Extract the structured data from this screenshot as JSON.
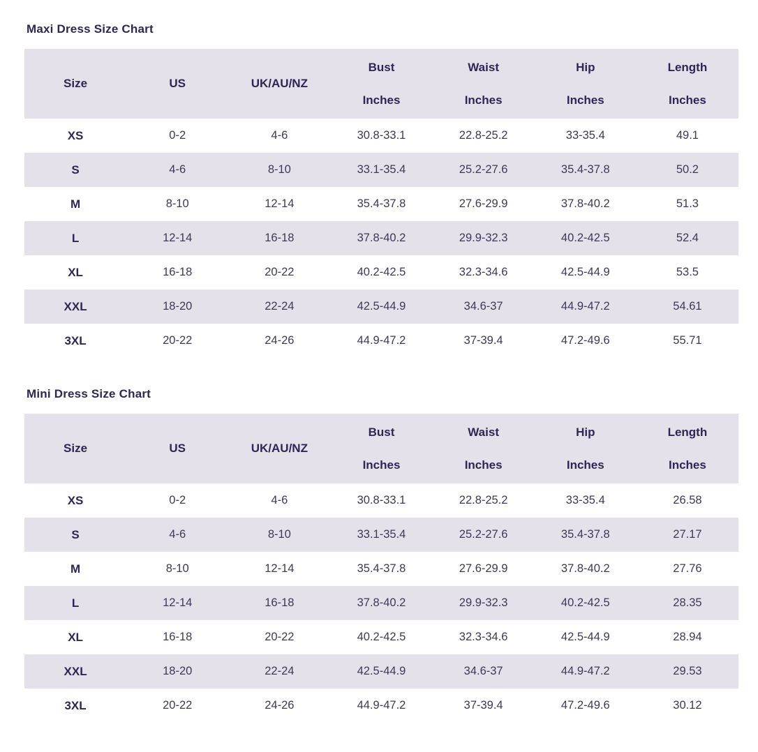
{
  "colors": {
    "stripe_bg": "#e4e1eb",
    "header_bg": "#e4e1eb",
    "title_text": "#2e2653",
    "data_text": "#3c3a54",
    "page_bg": "#ffffff"
  },
  "header": {
    "columns": [
      {
        "label": "Size",
        "sub": ""
      },
      {
        "label": "US",
        "sub": ""
      },
      {
        "label": "UK/AU/NZ",
        "sub": ""
      },
      {
        "label": "Bust",
        "sub": "Inches"
      },
      {
        "label": "Waist",
        "sub": "Inches"
      },
      {
        "label": "Hip",
        "sub": "Inches"
      },
      {
        "label": "Length",
        "sub": "Inches"
      }
    ]
  },
  "chart_data": [
    {
      "type": "table",
      "title": "Maxi Dress Size Chart",
      "columns": [
        "Size",
        "US",
        "UK/AU/NZ",
        "Bust Inches",
        "Waist Inches",
        "Hip Inches",
        "Length Inches"
      ],
      "rows": [
        [
          "XS",
          "0-2",
          "4-6",
          "30.8-33.1",
          "22.8-25.2",
          "33-35.4",
          "49.1"
        ],
        [
          "S",
          "4-6",
          "8-10",
          "33.1-35.4",
          "25.2-27.6",
          "35.4-37.8",
          "50.2"
        ],
        [
          "M",
          "8-10",
          "12-14",
          "35.4-37.8",
          "27.6-29.9",
          "37.8-40.2",
          "51.3"
        ],
        [
          "L",
          "12-14",
          "16-18",
          "37.8-40.2",
          "29.9-32.3",
          "40.2-42.5",
          "52.4"
        ],
        [
          "XL",
          "16-18",
          "20-22",
          "40.2-42.5",
          "32.3-34.6",
          "42.5-44.9",
          "53.5"
        ],
        [
          "XXL",
          "18-20",
          "22-24",
          "42.5-44.9",
          "34.6-37",
          "44.9-47.2",
          "54.61"
        ],
        [
          "3XL",
          "20-22",
          "24-26",
          "44.9-47.2",
          "37-39.4",
          "47.2-49.6",
          "55.71"
        ]
      ]
    },
    {
      "type": "table",
      "title": "Mini Dress Size Chart",
      "columns": [
        "Size",
        "US",
        "UK/AU/NZ",
        "Bust Inches",
        "Waist Inches",
        "Hip Inches",
        "Length Inches"
      ],
      "rows": [
        [
          "XS",
          "0-2",
          "4-6",
          "30.8-33.1",
          "22.8-25.2",
          "33-35.4",
          "26.58"
        ],
        [
          "S",
          "4-6",
          "8-10",
          "33.1-35.4",
          "25.2-27.6",
          "35.4-37.8",
          "27.17"
        ],
        [
          "M",
          "8-10",
          "12-14",
          "35.4-37.8",
          "27.6-29.9",
          "37.8-40.2",
          "27.76"
        ],
        [
          "L",
          "12-14",
          "16-18",
          "37.8-40.2",
          "29.9-32.3",
          "40.2-42.5",
          "28.35"
        ],
        [
          "XL",
          "16-18",
          "20-22",
          "40.2-42.5",
          "32.3-34.6",
          "42.5-44.9",
          "28.94"
        ],
        [
          "XXL",
          "18-20",
          "22-24",
          "42.5-44.9",
          "34.6-37",
          "44.9-47.2",
          "29.53"
        ],
        [
          "3XL",
          "20-22",
          "24-26",
          "44.9-47.2",
          "37-39.4",
          "47.2-49.6",
          "30.12"
        ]
      ]
    }
  ]
}
